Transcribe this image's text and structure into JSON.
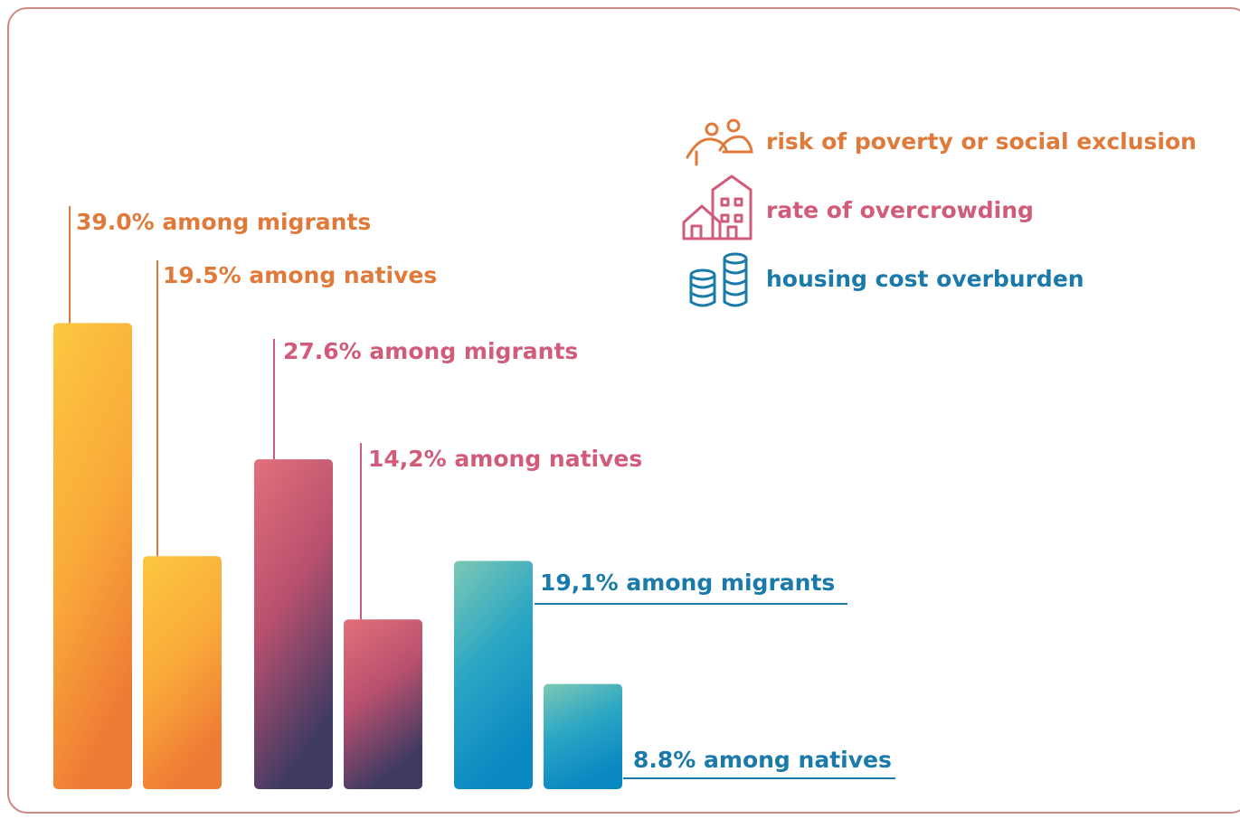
{
  "colors": {
    "poverty": "#e07a3a",
    "overcrowding": "#d05c7a",
    "housing": "#1a7aaa",
    "frame": "#c98a86"
  },
  "legend": [
    {
      "label": "risk of poverty or social exclusion",
      "icon": "people-icon",
      "series": "poverty"
    },
    {
      "label": "rate of overcrowding",
      "icon": "houses-icon",
      "series": "overcrowding"
    },
    {
      "label": "housing cost overburden",
      "icon": "coins-icon",
      "series": "housing"
    }
  ],
  "chart_data": {
    "type": "bar",
    "groups": [
      "risk of poverty or social exclusion",
      "rate of overcrowding",
      "housing cost overburden"
    ],
    "series": [
      {
        "name": "migrants",
        "values": [
          39.0,
          27.6,
          19.1
        ]
      },
      {
        "name": "natives",
        "values": [
          19.5,
          14.2,
          8.8
        ]
      }
    ],
    "bar_labels": [
      [
        "39.0% among migrants",
        "19.5% among natives"
      ],
      [
        "27.6% among migrants",
        "14,2% among natives"
      ],
      [
        "19,1% among migrants",
        "8.8% among natives"
      ]
    ],
    "ylim": [
      0,
      100
    ],
    "grid": false
  }
}
